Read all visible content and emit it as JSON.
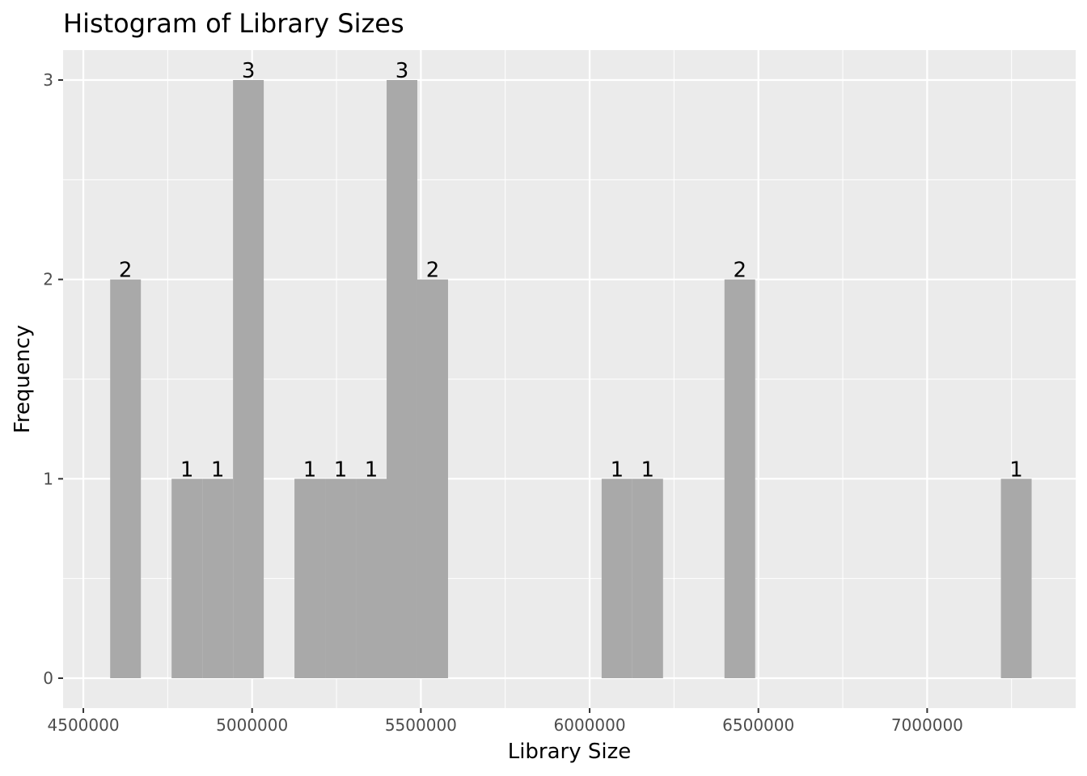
{
  "chart_data": {
    "type": "bar",
    "title": "Histogram of Library Sizes",
    "xlabel": "Library Size",
    "ylabel": "Frequency",
    "xlim": [
      4440000,
      7440000
    ],
    "ylim": [
      -0.15,
      3.15
    ],
    "x_ticks": [
      4500000,
      5000000,
      5500000,
      6000000,
      6500000,
      7000000
    ],
    "x_tick_labels": [
      "4500000",
      "5000000",
      "5500000",
      "6000000",
      "6500000",
      "7000000"
    ],
    "y_ticks": [
      0,
      1,
      2,
      3
    ],
    "y_tick_labels": [
      "0",
      "1",
      "2",
      "3"
    ],
    "bin_width": 91000,
    "bins": [
      {
        "x": 4625000,
        "count": 2
      },
      {
        "x": 4807000,
        "count": 1
      },
      {
        "x": 4898000,
        "count": 1
      },
      {
        "x": 4989000,
        "count": 3
      },
      {
        "x": 5171000,
        "count": 1
      },
      {
        "x": 5262000,
        "count": 1
      },
      {
        "x": 5353000,
        "count": 1
      },
      {
        "x": 5444000,
        "count": 3
      },
      {
        "x": 5535000,
        "count": 2
      },
      {
        "x": 6081000,
        "count": 1
      },
      {
        "x": 6172000,
        "count": 1
      },
      {
        "x": 6445000,
        "count": 2
      },
      {
        "x": 7264000,
        "count": 1
      }
    ],
    "grid": true,
    "colors": {
      "panel": "#ebebeb",
      "grid_major": "#ffffff",
      "bar": "#a9a9a9",
      "tick_text": "#4d4d4d",
      "text": "#000000"
    }
  }
}
